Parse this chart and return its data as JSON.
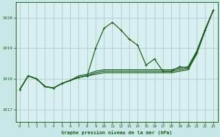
{
  "title": "Graphe pression niveau de la mer (hPa)",
  "background_color": "#c8e8e8",
  "plot_bg_color": "#d8f0f0",
  "grid_color": "#b0d0d0",
  "line_color": "#1a5c1a",
  "label_bg_color": "#c8e8e8",
  "xlim": [
    -0.5,
    23.5
  ],
  "ylim": [
    1016.6,
    1020.5
  ],
  "yticks": [
    1017,
    1018,
    1019,
    1020
  ],
  "xticks": [
    0,
    1,
    2,
    3,
    4,
    5,
    6,
    7,
    8,
    9,
    10,
    11,
    12,
    13,
    14,
    15,
    16,
    17,
    18,
    19,
    20,
    21,
    22,
    23
  ],
  "hours": [
    0,
    1,
    2,
    3,
    4,
    5,
    6,
    7,
    8,
    9,
    10,
    11,
    12,
    13,
    14,
    15,
    16,
    17,
    18,
    19,
    20,
    21,
    22,
    23
  ],
  "series1": [
    1017.65,
    1018.1,
    1018.0,
    1017.75,
    1017.7,
    1017.85,
    1017.95,
    1018.05,
    1018.1,
    1019.0,
    1019.65,
    1019.85,
    1019.6,
    1019.3,
    1019.1,
    1018.45,
    1018.65,
    1018.25,
    1018.25,
    1018.4,
    1018.35,
    1018.85,
    1019.6,
    1020.25
  ],
  "series2": [
    1017.65,
    1018.1,
    1018.0,
    1017.75,
    1017.7,
    1017.85,
    1017.95,
    1018.05,
    1018.1,
    1018.2,
    1018.25,
    1018.25,
    1018.25,
    1018.25,
    1018.25,
    1018.25,
    1018.25,
    1018.25,
    1018.25,
    1018.3,
    1018.35,
    1018.85,
    1019.6,
    1020.25
  ],
  "series3": [
    1017.65,
    1018.1,
    1018.0,
    1017.75,
    1017.7,
    1017.85,
    1017.95,
    1018.1,
    1018.15,
    1018.25,
    1018.3,
    1018.3,
    1018.3,
    1018.3,
    1018.3,
    1018.3,
    1018.3,
    1018.3,
    1018.3,
    1018.35,
    1018.4,
    1018.9,
    1019.6,
    1020.25
  ],
  "series4": [
    1017.65,
    1018.1,
    1018.0,
    1017.75,
    1017.7,
    1017.85,
    1017.95,
    1018.05,
    1018.1,
    1018.15,
    1018.2,
    1018.2,
    1018.2,
    1018.2,
    1018.2,
    1018.2,
    1018.2,
    1018.2,
    1018.2,
    1018.25,
    1018.3,
    1018.8,
    1019.55,
    1020.25
  ]
}
